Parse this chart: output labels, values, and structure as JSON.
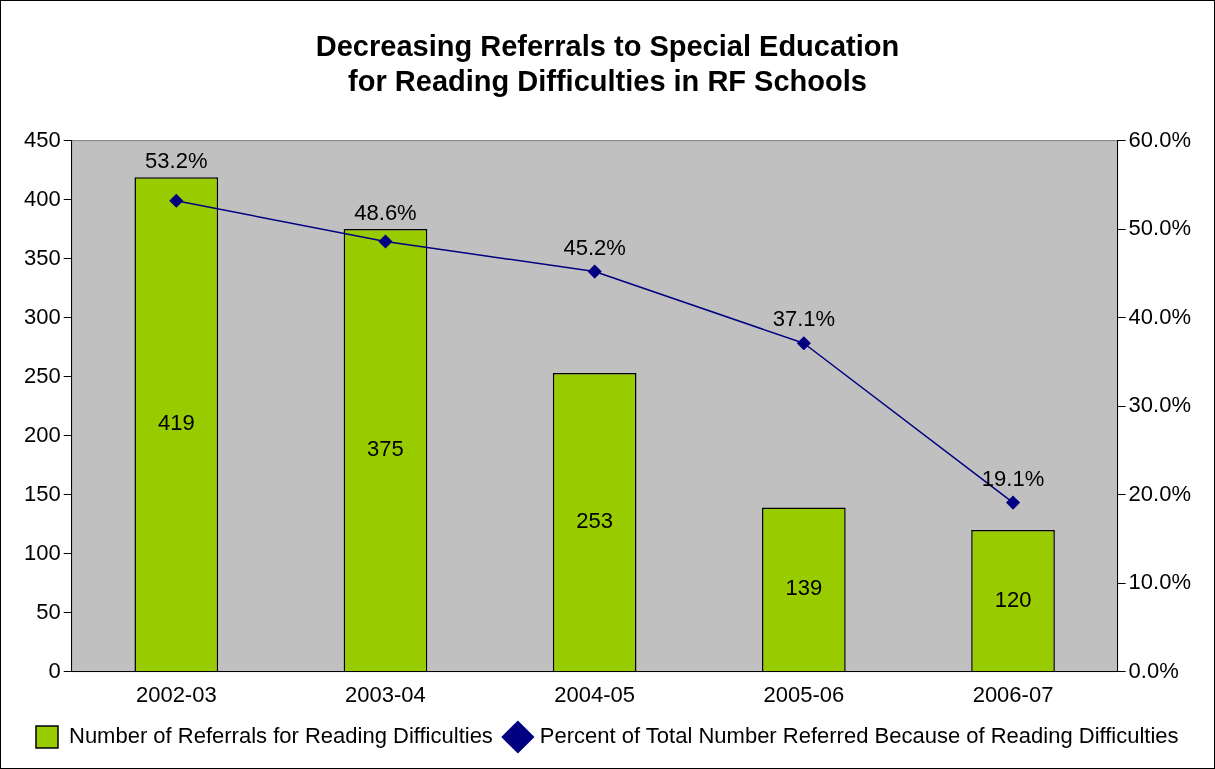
{
  "chart_data": {
    "type": "bar",
    "title": "Decreasing Referrals to Special Education for Reading Difficulties in RF Schools",
    "categories": [
      "2002-03",
      "2003-04",
      "2004-05",
      "2005-06",
      "2006-07"
    ],
    "series": [
      {
        "name": "Number of Referrals for Reading Difficulties",
        "color": "#99cc00",
        "values": [
          419,
          375,
          253,
          139,
          120
        ],
        "value_labels": [
          "419",
          "375",
          "253",
          "139",
          "120"
        ]
      },
      {
        "name": "Percent of Total Number Referred Because of Reading Difficulties",
        "type": "line",
        "axis": "y2",
        "color": "#000080",
        "values": [
          53.2,
          48.6,
          45.2,
          37.1,
          19.1
        ],
        "value_labels": [
          "53.2%",
          "48.6%",
          "45.2%",
          "37.1%",
          "19.1%"
        ]
      }
    ],
    "ylim": [
      0,
      450
    ],
    "yticks": [
      0,
      50,
      100,
      150,
      200,
      250,
      300,
      350,
      400,
      450
    ],
    "y2lim": [
      0,
      60
    ],
    "y2ticks": [
      {
        "value": 0,
        "label": "0.0%"
      },
      {
        "value": 10,
        "label": "10.0%"
      },
      {
        "value": 20,
        "label": "20.0%"
      },
      {
        "value": 30,
        "label": "30.0%"
      },
      {
        "value": 40,
        "label": "40.0%"
      },
      {
        "value": 50,
        "label": "50.0%"
      },
      {
        "value": 60,
        "label": "60.0%"
      }
    ],
    "grid": false,
    "legend": "bottom",
    "marker": "diamond",
    "line_style": "solid"
  }
}
